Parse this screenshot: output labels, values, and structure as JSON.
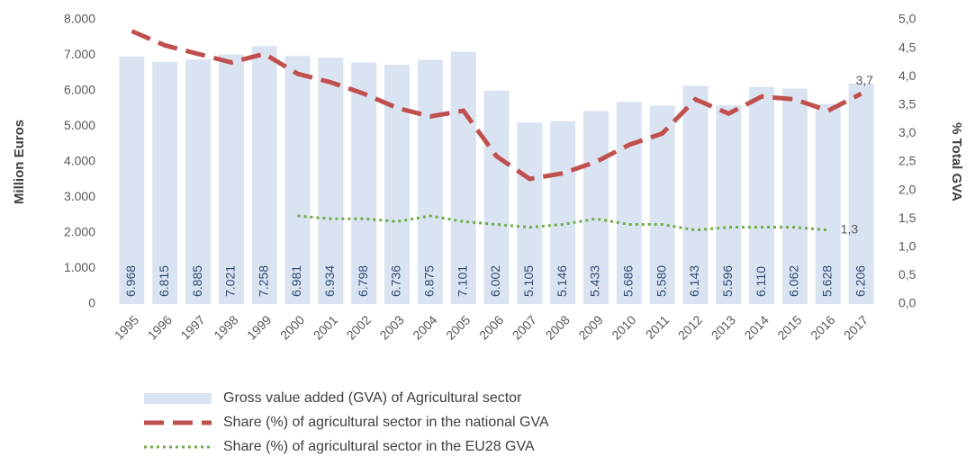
{
  "chart_data": {
    "type": "bar",
    "ylabel": "Million Euros",
    "y2label": "% Total GVA",
    "categories": [
      "1995",
      "1996",
      "1997",
      "1998",
      "1999",
      "2000",
      "2001",
      "2002",
      "2003",
      "2004",
      "2005",
      "2006",
      "2007",
      "2008",
      "2009",
      "2010",
      "2011",
      "2012",
      "2013",
      "2014",
      "2015",
      "2016",
      "2017"
    ],
    "ylim": [
      0,
      8000
    ],
    "yticks": [
      0,
      {
        "value": 1000,
        "label": "1.000"
      },
      {
        "value": 2000,
        "label": "2.000"
      },
      {
        "value": 3000,
        "label": "3.000"
      },
      {
        "value": 4000,
        "label": "4.000"
      },
      {
        "value": 5000,
        "label": "5.000"
      },
      {
        "value": 6000,
        "label": "6.000"
      },
      {
        "value": 7000,
        "label": "7.000"
      },
      {
        "value": 8000,
        "label": "8.000"
      }
    ],
    "y2lim": [
      0,
      5
    ],
    "y2ticks": [
      {
        "value": 0,
        "label": "0,0"
      },
      {
        "value": 0.5,
        "label": "0,5"
      },
      {
        "value": 1,
        "label": "1,0"
      },
      {
        "value": 1.5,
        "label": "1,5"
      },
      {
        "value": 2,
        "label": "2,0"
      },
      {
        "value": 2.5,
        "label": "2,5"
      },
      {
        "value": 3,
        "label": "3,0"
      },
      {
        "value": 3.5,
        "label": "3,5"
      },
      {
        "value": 4,
        "label": "4,0"
      },
      {
        "value": 4.5,
        "label": "4,5"
      },
      {
        "value": 5,
        "label": "5,0"
      }
    ],
    "grid": false,
    "series": [
      {
        "name": "Gross value added (GVA) of Agricultural sector",
        "type": "bar",
        "color": "#dae3f1",
        "values": [
          6968,
          6815,
          6885,
          7021,
          7258,
          6981,
          6934,
          6798,
          6736,
          6875,
          7101,
          6002,
          5105,
          5146,
          5433,
          5686,
          5580,
          6143,
          5596,
          6110,
          6062,
          5628,
          6206
        ],
        "value_labels": [
          "6.968",
          "6.815",
          "6.885",
          "7.021",
          "7.258",
          "6.981",
          "6.934",
          "6.798",
          "6.736",
          "6.875",
          "7.101",
          "6.002",
          "5.105",
          "5.146",
          "5.433",
          "5.686",
          "5.580",
          "6.143",
          "5.596",
          "6.110",
          "6.062",
          "5.628",
          "6.206"
        ]
      },
      {
        "name": "Share (%) of agricultural sector in the national GVA",
        "type": "line",
        "style": "dashed",
        "axis": "y2",
        "color": "#c0504d",
        "values": [
          4.8,
          4.55,
          4.4,
          4.25,
          4.4,
          4.05,
          3.9,
          3.7,
          3.45,
          3.3,
          3.4,
          2.6,
          2.2,
          2.3,
          2.5,
          2.8,
          3.0,
          3.6,
          3.35,
          3.65,
          3.6,
          3.4,
          3.7
        ],
        "value_labels": [
          null,
          null,
          null,
          null,
          null,
          null,
          null,
          null,
          null,
          null,
          null,
          null,
          null,
          null,
          null,
          null,
          null,
          null,
          null,
          null,
          null,
          null,
          "3,7"
        ]
      },
      {
        "name": "Share (%) of agricultural sector in the EU28 GVA",
        "type": "line",
        "style": "dotted",
        "axis": "y2",
        "color": "#70ad47",
        "values": [
          null,
          null,
          null,
          null,
          null,
          1.55,
          1.5,
          1.5,
          1.45,
          1.55,
          1.45,
          1.4,
          1.35,
          1.4,
          1.5,
          1.4,
          1.4,
          1.3,
          1.35,
          1.35,
          1.35,
          1.3,
          null
        ],
        "value_labels": [
          null,
          null,
          null,
          null,
          null,
          null,
          null,
          null,
          null,
          null,
          null,
          null,
          null,
          null,
          null,
          null,
          null,
          null,
          null,
          null,
          null,
          "1,3",
          null
        ]
      }
    ]
  }
}
